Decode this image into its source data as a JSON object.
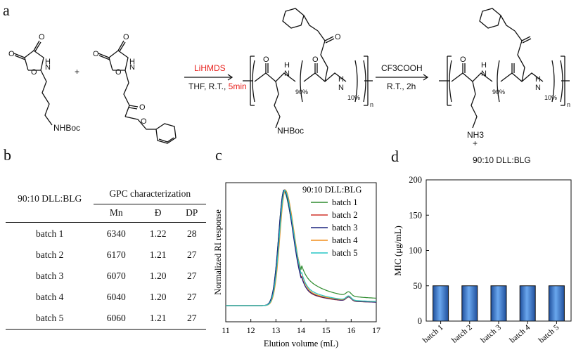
{
  "panels": {
    "a": "a",
    "b": "b",
    "c": "c",
    "d": "d"
  },
  "scheme": {
    "reagent_red": "LiHMDS",
    "conditions_black": "THF, R.T., ",
    "conditions_red": "5min",
    "step2_reagent": "CF3COOH",
    "step2_conditions": "R.T., 2h",
    "plus": "+",
    "nhboc_1": "NHBoc",
    "nhboc_2": "NHBoc",
    "nh3": "NH3",
    "nh3_charge": "+",
    "sub_90_a": "90%",
    "sub_10_a": "10%",
    "sub_90_b": "90%",
    "sub_10_b": "10%",
    "n_a": "n",
    "n_b": "n",
    "product_label": "90:10 DLL:BLG",
    "atoms": [
      "O",
      "O",
      "O",
      "N",
      "H",
      "O",
      "O",
      "O",
      "N",
      "H",
      "O",
      "O",
      "H",
      "N",
      "O",
      "H",
      "N",
      "O",
      "O",
      "H",
      "N",
      "O",
      "H",
      "N"
    ],
    "accent_red": "#e8231f"
  },
  "table": {
    "sample_header": "90:10 DLL:BLG",
    "group_header": "GPC characterization",
    "columns": [
      "Mn",
      "Đ",
      "DP"
    ],
    "rows": [
      {
        "label": "batch 1",
        "mn": "6340",
        "d": "1.22",
        "dp": "28"
      },
      {
        "label": "batch 2",
        "mn": "6170",
        "d": "1.21",
        "dp": "27"
      },
      {
        "label": "batch 3",
        "mn": "6070",
        "d": "1.20",
        "dp": "27"
      },
      {
        "label": "batch 4",
        "mn": "6040",
        "d": "1.20",
        "dp": "27"
      },
      {
        "label": "batch 5",
        "mn": "6060",
        "d": "1.21",
        "dp": "27"
      }
    ]
  },
  "chart_data": [
    {
      "type": "line",
      "title": "90:10 DLL:BLG",
      "xlabel": "Elution volume (mL)",
      "ylabel": "Normalized RI response",
      "xlim": [
        11,
        17
      ],
      "xticks": [
        "11",
        "12",
        "13",
        "14",
        "15",
        "16",
        "17"
      ],
      "legend_position": "top-right",
      "series": [
        {
          "name": "batch 1",
          "color": "#2e8b2e",
          "peak": 13.33,
          "tail": 0.55,
          "baseline_after": 0.055
        },
        {
          "name": "batch 2",
          "color": "#d0342c",
          "peak": 13.35,
          "tail": 0.78,
          "baseline_after": 0.025
        },
        {
          "name": "batch 3",
          "color": "#1a237e",
          "peak": 13.33,
          "tail": 0.76,
          "baseline_after": 0.025
        },
        {
          "name": "batch 4",
          "color": "#f28e1c",
          "peak": 13.38,
          "tail": 0.77,
          "baseline_after": 0.03
        },
        {
          "name": "batch 5",
          "color": "#26c6c6",
          "peak": 13.36,
          "tail": 0.72,
          "baseline_after": 0.03
        }
      ]
    },
    {
      "type": "bar",
      "xlabel": "",
      "ylabel": "MIC (μg/mL)",
      "ylim": [
        0,
        200
      ],
      "yticks": [
        "0",
        "50",
        "100",
        "150",
        "200"
      ],
      "categories": [
        "batch 1",
        "batch 2",
        "batch 3",
        "batch 4",
        "batch 5"
      ],
      "values": [
        50,
        50,
        50,
        50,
        50
      ],
      "bar_color": "#3a78c8"
    }
  ]
}
